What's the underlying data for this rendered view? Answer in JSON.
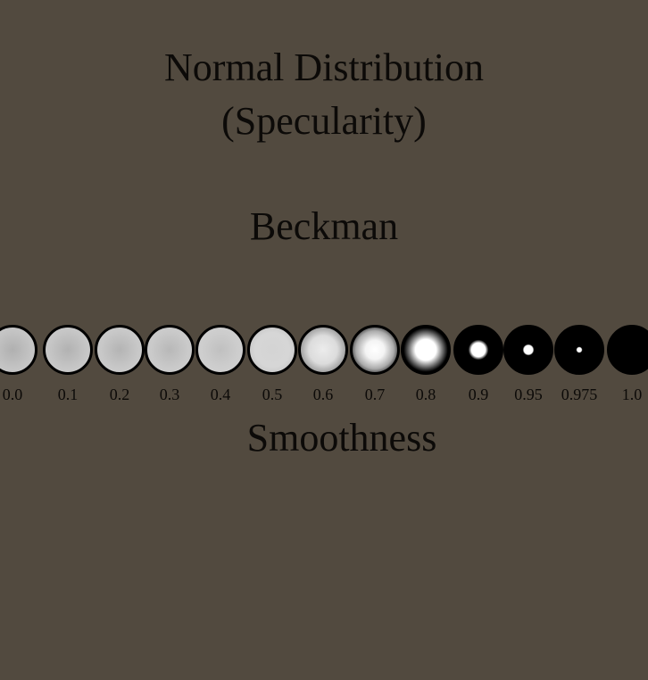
{
  "title_line1": "Normal Distribution",
  "title_line2": "(Specularity)",
  "subtitle": "Beckman",
  "xlabel": "Smoothness",
  "background_color": "#524a3f",
  "samples": [
    {
      "label": "0.0",
      "value": 0.0
    },
    {
      "label": "0.1",
      "value": 0.1
    },
    {
      "label": "0.2",
      "value": 0.2
    },
    {
      "label": "0.3",
      "value": 0.3
    },
    {
      "label": "0.4",
      "value": 0.4
    },
    {
      "label": "0.5",
      "value": 0.5
    },
    {
      "label": "0.6",
      "value": 0.6
    },
    {
      "label": "0.7",
      "value": 0.7
    },
    {
      "label": "0.8",
      "value": 0.8
    },
    {
      "label": "0.9",
      "value": 0.9
    },
    {
      "label": "0.95",
      "value": 0.95
    },
    {
      "label": "0.975",
      "value": 0.975
    },
    {
      "label": "1.0",
      "value": 1.0
    }
  ]
}
